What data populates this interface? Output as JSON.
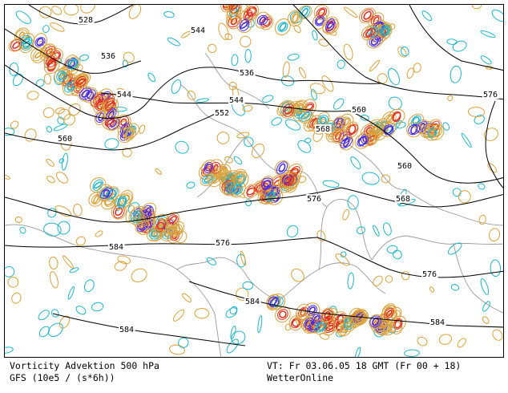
{
  "footer": {
    "title": "Vorticity Advektion 500 hPa",
    "model": "GFS (10e5 / (s*6h))",
    "valid_time": "VT: Fr 03.06.05 18 GMT (Fr 00 + 18)",
    "brand": "WetterOnline"
  },
  "map": {
    "geopotential_labels": [
      "528",
      "536",
      "544",
      "536",
      "544",
      "544",
      "552",
      "560",
      "560",
      "568",
      "560",
      "576",
      "568",
      "576",
      "576",
      "584",
      "576",
      "584",
      "584",
      "584"
    ],
    "colors": {
      "geopotential_contour": "#000000",
      "coastline": "#9a9a9a",
      "negative_advection": "#1fb4c8",
      "positive_advection": "#d9a23c",
      "strong_positive": "#e03020",
      "strong_negative": "#4a2ae0"
    }
  }
}
